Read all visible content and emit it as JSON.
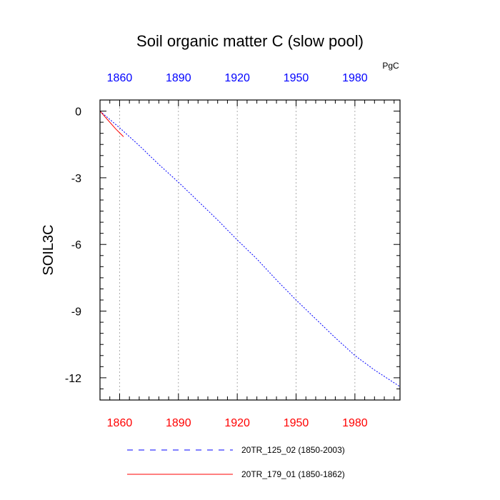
{
  "chart_data": {
    "type": "line",
    "title": "Soil organic matter C (slow pool)",
    "units": "PgC",
    "ylabel": "SOIL3C",
    "xlabel": "",
    "xlim": [
      1850,
      2003
    ],
    "ylim": [
      -13,
      0.5
    ],
    "xticks": [
      1860,
      1890,
      1920,
      1950,
      1980
    ],
    "xtick_labels": [
      "1860",
      "1890",
      "1920",
      "1950",
      "1980"
    ],
    "yticks": [
      0,
      -3,
      -6,
      -9,
      -12
    ],
    "ytick_labels": [
      "0",
      "-3",
      "-6",
      "-9",
      "-12"
    ],
    "grid": "vertical-dashed",
    "colors": {
      "top_axis_labels": "#0000ff",
      "bottom_axis_labels": "#ff0000",
      "grid": "#999999"
    },
    "series": [
      {
        "name": "20TR_125_02 (1850-2003)",
        "color": "#0000ff",
        "style": "dashed",
        "x": [
          1850,
          1860,
          1870,
          1880,
          1890,
          1900,
          1910,
          1920,
          1930,
          1940,
          1950,
          1960,
          1970,
          1980,
          1990,
          2003
        ],
        "y": [
          0,
          -0.75,
          -1.55,
          -2.4,
          -3.2,
          -4.05,
          -4.9,
          -5.8,
          -6.65,
          -7.6,
          -8.5,
          -9.35,
          -10.2,
          -11.0,
          -11.65,
          -12.4
        ]
      },
      {
        "name": "20TR_179_01 (1850-1862)",
        "color": "#ff0000",
        "style": "solid",
        "x": [
          1850,
          1854,
          1858,
          1862
        ],
        "y": [
          0,
          -0.4,
          -0.8,
          -1.15
        ]
      }
    ]
  }
}
